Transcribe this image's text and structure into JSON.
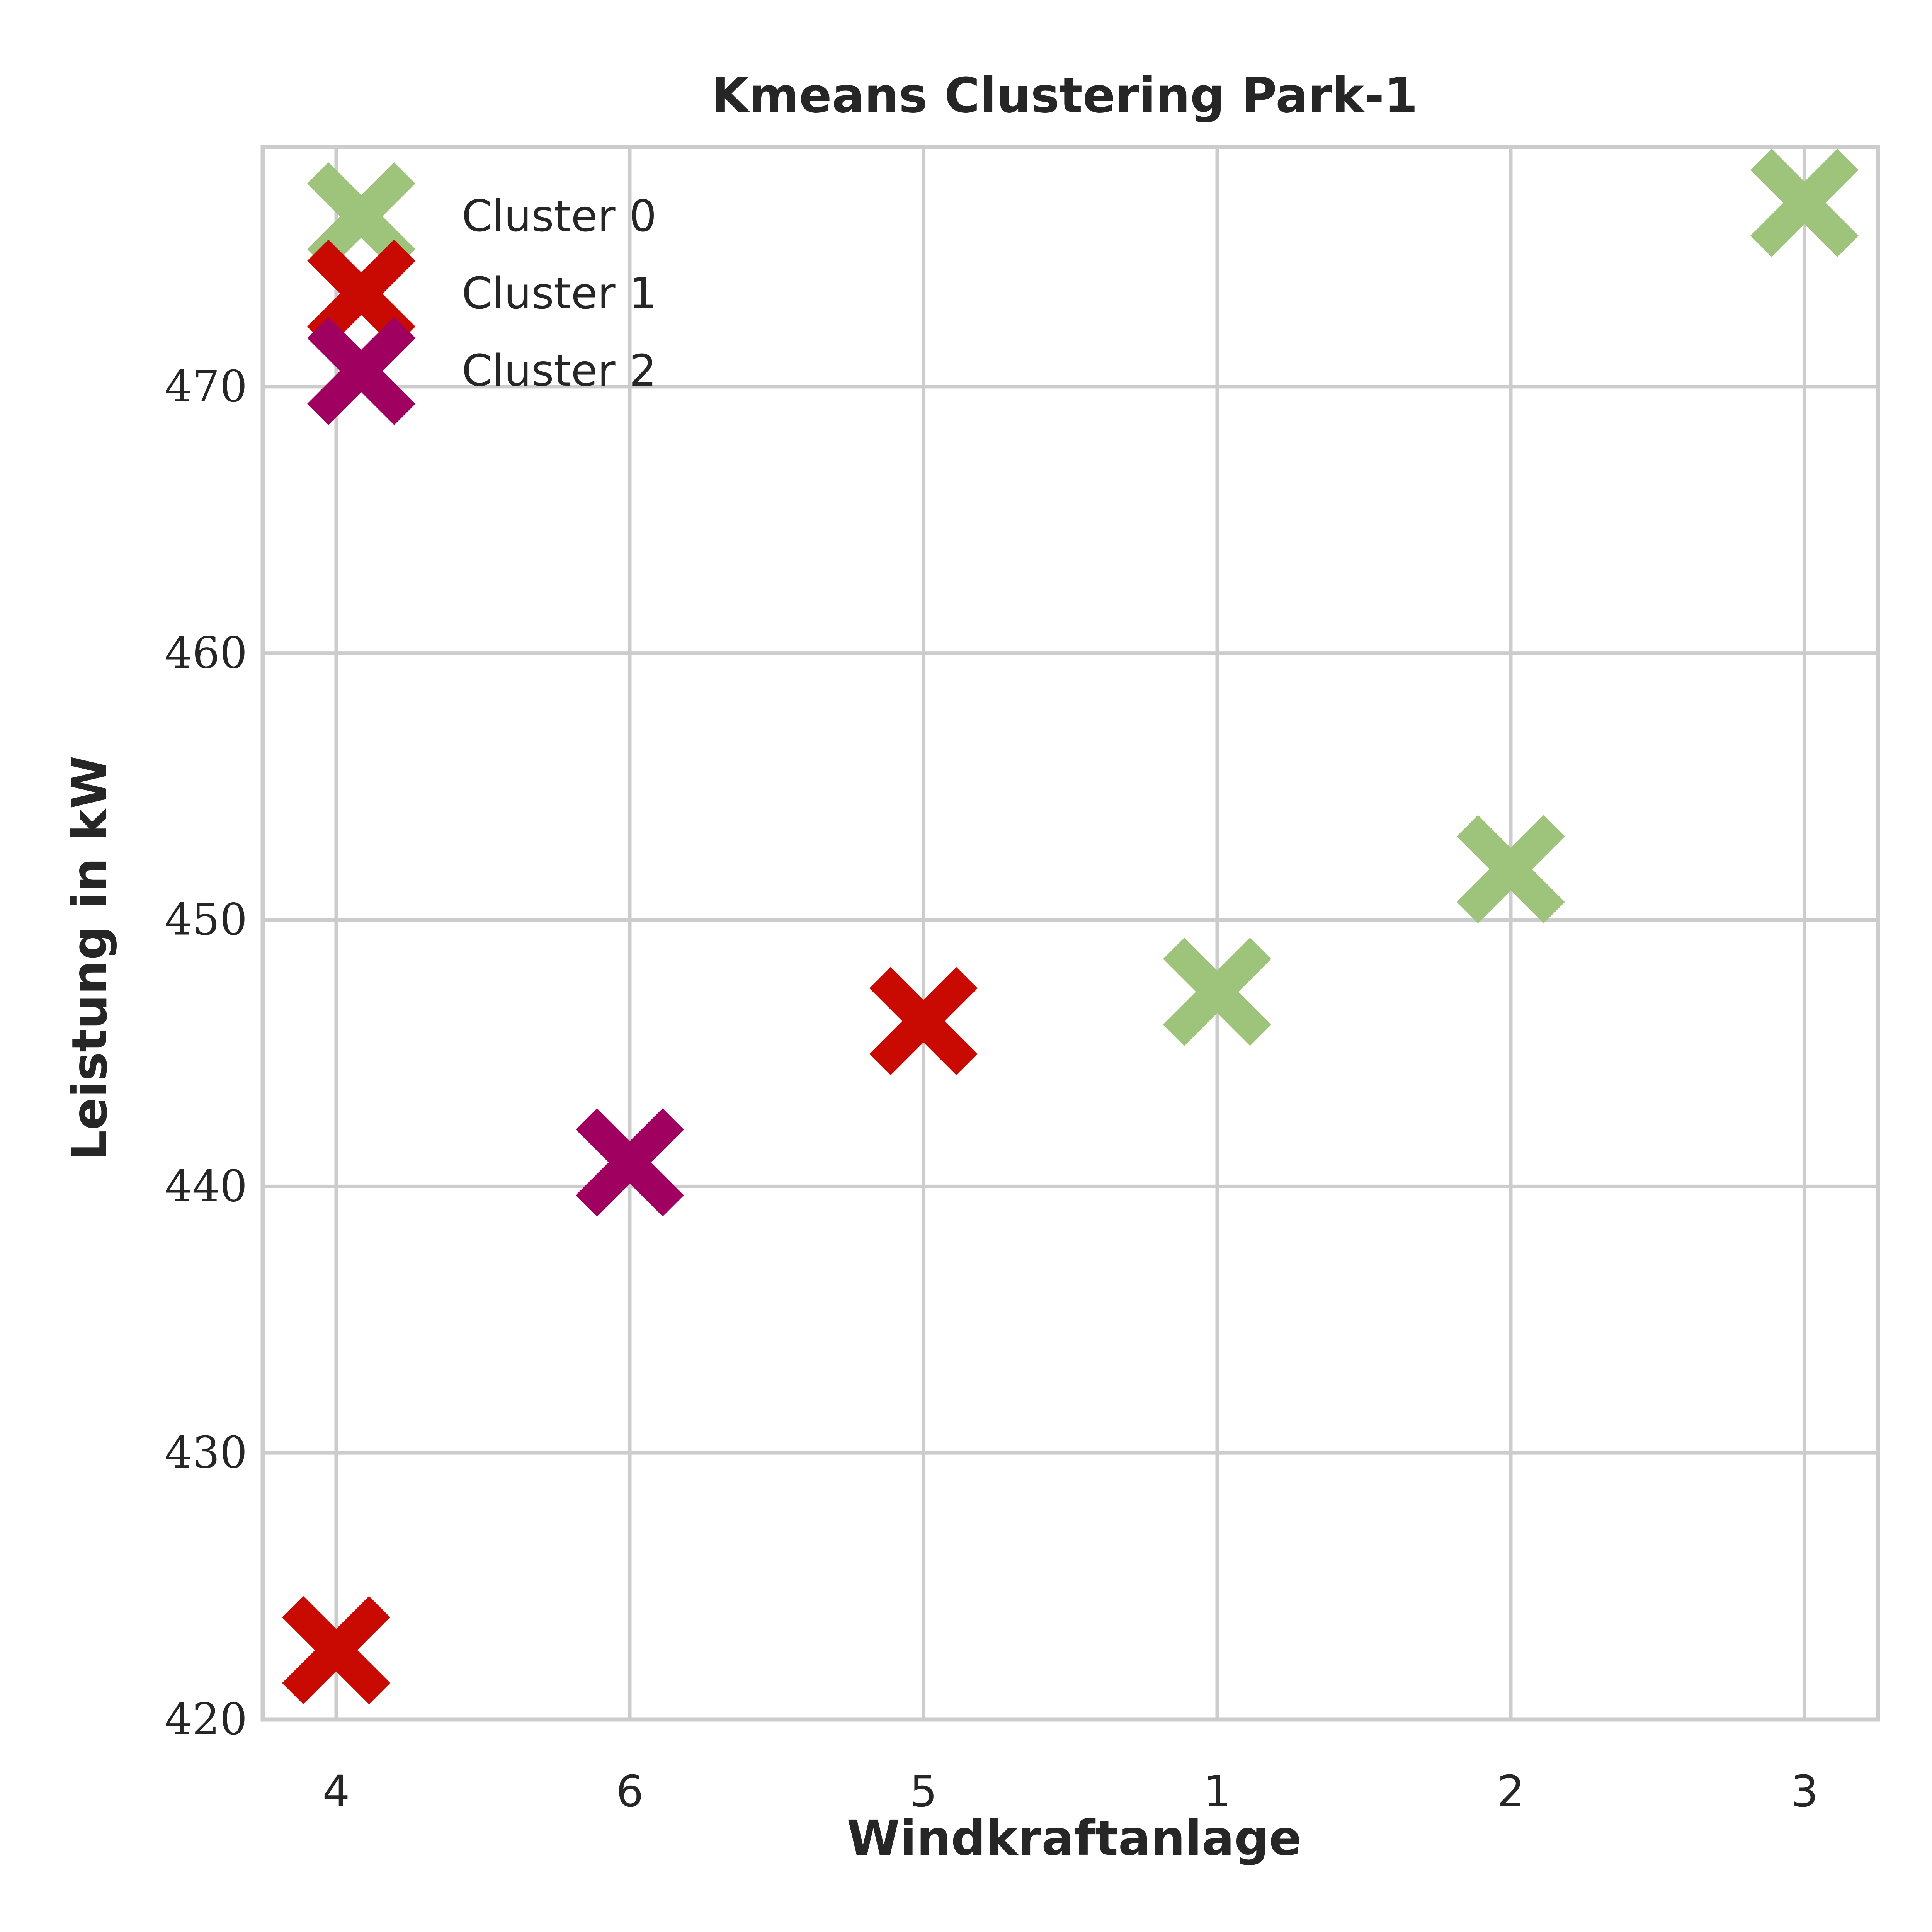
{
  "chart_data": {
    "type": "scatter",
    "title": "Kmeans Clustering Park-1",
    "xlabel": "Windkraftanlage",
    "ylabel": "Leistung in kW",
    "x_categories": [
      "4",
      "6",
      "5",
      "1",
      "2",
      "3"
    ],
    "ylim": [
      420,
      479
    ],
    "yticks": [
      420,
      430,
      440,
      450,
      460,
      470
    ],
    "grid": true,
    "legend_position": "top-left",
    "marker": "X",
    "series": [
      {
        "name": "Cluster 0",
        "color": "#9dc47a",
        "points": [
          {
            "x": "1",
            "y": 447.3
          },
          {
            "x": "2",
            "y": 451.9
          },
          {
            "x": "3",
            "y": 476.9
          }
        ]
      },
      {
        "name": "Cluster 1",
        "color": "#c80a02",
        "points": [
          {
            "x": "4",
            "y": 422.6
          },
          {
            "x": "5",
            "y": 446.2
          }
        ]
      },
      {
        "name": "Cluster 2",
        "color": "#a00060",
        "points": [
          {
            "x": "6",
            "y": 440.9
          }
        ]
      }
    ]
  }
}
